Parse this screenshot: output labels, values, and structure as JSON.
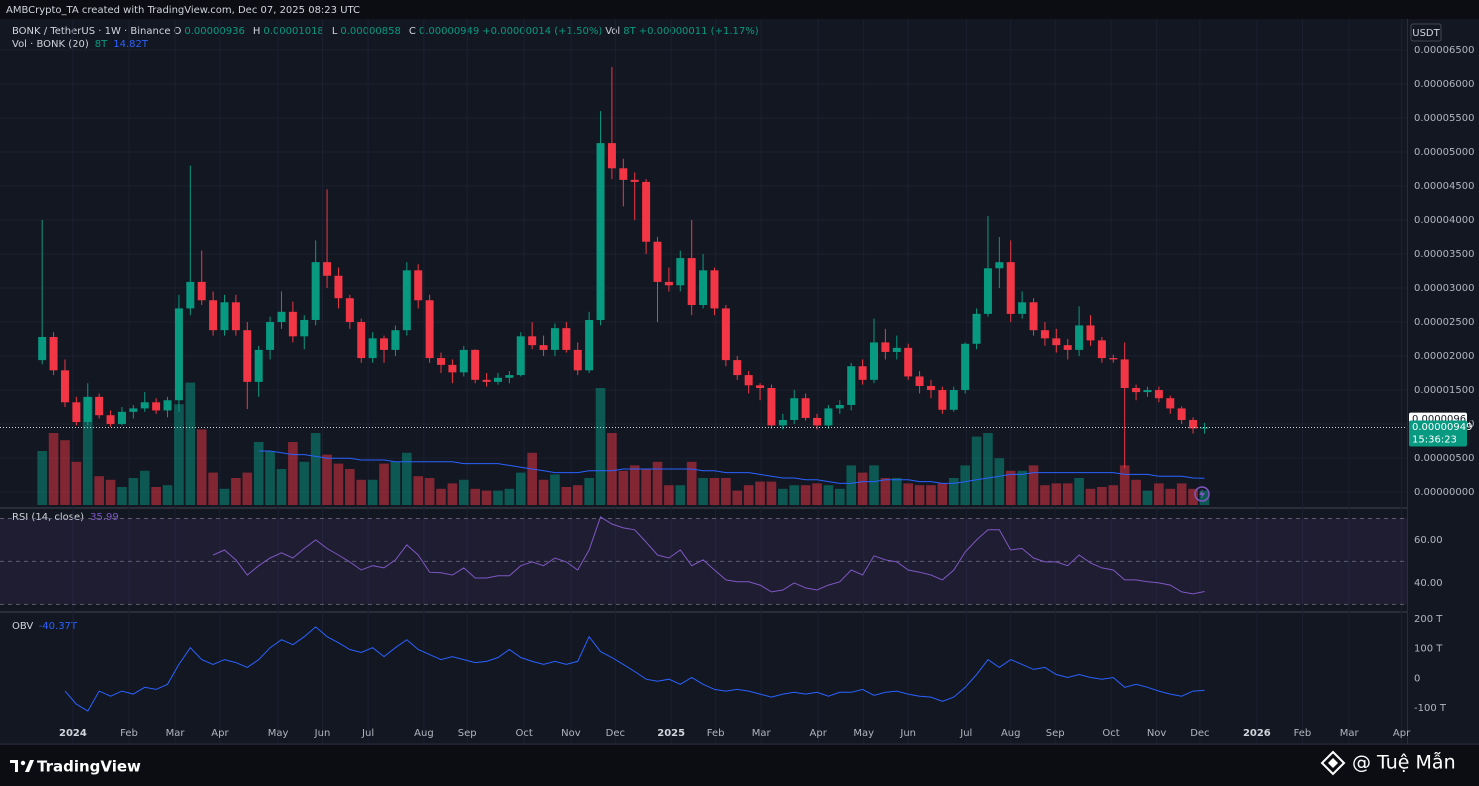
{
  "header": {
    "credit": "AMBCrypto_TA created with TradingView.com, Dec 07, 2025 08:23 UTC",
    "currency": "USDT",
    "legend": [
      {
        "text": "BONK / TetherUS · 1W · Binance",
        "color": "#d1d4dc"
      },
      {
        "text": "O",
        "color": "#d1d4dc"
      },
      {
        "text": "0.00000936",
        "color": "#089981"
      },
      {
        "text": "H",
        "color": "#d1d4dc"
      },
      {
        "text": "0.00001018",
        "color": "#089981"
      },
      {
        "text": "L",
        "color": "#d1d4dc"
      },
      {
        "text": "0.00000858",
        "color": "#089981"
      },
      {
        "text": "C",
        "color": "#d1d4dc"
      },
      {
        "text": "0.00000949",
        "color": "#089981"
      },
      {
        "text": "+0.00000014 (+1.50%)",
        "color": "#089981"
      },
      {
        "text": "Vol",
        "color": "#d1d4dc"
      },
      {
        "text": "8T",
        "color": "#089981"
      },
      {
        "text": "+0.00000011 (+1.17%)",
        "color": "#089981"
      }
    ]
  },
  "chart_data": [
    {
      "type": "candlestick",
      "up_color": "#089981",
      "down_color": "#f23645",
      "open": [
        1.94e-05,
        2.28e-05,
        1.79e-05,
        1.32e-05,
        1.03e-05,
        1.4e-05,
        1.13e-05,
        1e-05,
        1.18e-05,
        1.23e-05,
        1.32e-05,
        1.2e-05,
        1.35e-05,
        2.7e-05,
        3.09e-05,
        2.82e-05,
        2.38e-05,
        2.79e-05,
        2.38e-05,
        1.62e-05,
        2.09e-05,
        2.5e-05,
        2.65e-05,
        2.29e-05,
        2.53e-05,
        3.38e-05,
        3.18e-05,
        2.85e-05,
        2.5e-05,
        1.97e-05,
        2.26e-05,
        2.09e-05,
        2.38e-05,
        3.26e-05,
        2.82e-05,
        1.97e-05,
        1.87e-05,
        1.76e-05,
        2.09e-05,
        1.65e-05,
        1.62e-05,
        1.68e-05,
        1.72e-05,
        2.29e-05,
        2.16e-05,
        2.09e-05,
        2.41e-05,
        2.09e-05,
        1.79e-05,
        2.53e-05,
        5.13e-05,
        4.76e-05,
        4.59e-05,
        4.56e-05,
        3.68e-05,
        3.09e-05,
        3.04e-05,
        3.44e-05,
        2.75e-05,
        3.26e-05,
        2.7e-05,
        1.94e-05,
        1.72e-05,
        1.57e-05,
        1.53e-05,
        9.8e-06,
        1.06e-05,
        1.38e-05,
        1.09e-05,
        9.8e-06,
        1.23e-05,
        1.28e-05,
        1.85e-05,
        1.65e-05,
        2.2e-05,
        2.06e-05,
        2.12e-05,
        1.7e-05,
        1.56e-05,
        1.5e-05,
        1.21e-05,
        1.5e-05,
        2.18e-05,
        2.62e-05,
        3.29e-05,
        3.38e-05,
        2.62e-05,
        2.79e-05,
        2.38e-05,
        2.26e-05,
        2.16e-05,
        2.09e-05,
        2.45e-05,
        2.23e-05,
        1.97e-05,
        1.95e-05,
        1.53e-05,
        1.47e-05,
        1.5e-05,
        1.38e-05,
        1.23e-05,
        1.06e-05,
        9.36e-06
      ],
      "high": [
        4e-05,
        2.35e-05,
        1.95e-05,
        1.4e-05,
        1.6e-05,
        1.45e-05,
        1.2e-05,
        1.25e-05,
        1.28e-05,
        1.47e-05,
        1.38e-05,
        1.4e-05,
        2.9e-05,
        4.8e-05,
        3.55e-05,
        2.95e-05,
        2.9e-05,
        2.9e-05,
        2.5e-05,
        2.15e-05,
        2.58e-05,
        2.95e-05,
        2.8e-05,
        2.6e-05,
        3.7e-05,
        4.45e-05,
        3.3e-05,
        2.9e-05,
        2.55e-05,
        2.35e-05,
        2.3e-05,
        2.45e-05,
        3.38e-05,
        3.35e-05,
        2.9e-05,
        2.05e-05,
        1.95e-05,
        2.15e-05,
        2.1e-05,
        1.75e-05,
        1.75e-05,
        1.78e-05,
        2.35e-05,
        2.5e-05,
        2.3e-05,
        2.48e-05,
        2.5e-05,
        2.2e-05,
        2.65e-05,
        5.6e-05,
        6.25e-05,
        4.9e-05,
        4.7e-05,
        4.6e-05,
        3.75e-05,
        3.3e-05,
        3.55e-05,
        4e-05,
        3.5e-05,
        3.3e-05,
        2.75e-05,
        2e-05,
        1.78e-05,
        1.6e-05,
        1.58e-05,
        1.15e-05,
        1.5e-05,
        1.45e-05,
        1.15e-05,
        1.28e-05,
        1.35e-05,
        1.9e-05,
        1.95e-05,
        2.55e-05,
        2.4e-05,
        2.3e-05,
        2.18e-05,
        1.78e-05,
        1.65e-05,
        1.55e-05,
        1.55e-05,
        2.2e-05,
        2.7e-05,
        4.06e-05,
        3.75e-05,
        3.7e-05,
        2.95e-05,
        2.85e-05,
        2.5e-05,
        2.4e-05,
        2.25e-05,
        2.73e-05,
        2.6e-05,
        2.28e-05,
        2.02e-05,
        2.2e-05,
        1.58e-05,
        1.55e-05,
        1.55e-05,
        1.42e-05,
        1.26e-05,
        1.1e-05,
        1.018e-05
      ],
      "low": [
        1.88e-05,
        1.72e-05,
        1.25e-05,
        9.8e-06,
        9.8e-06,
        1.08e-05,
        9.6e-06,
        9.8e-06,
        1.08e-05,
        1.18e-05,
        1.15e-05,
        1.1e-05,
        1.18e-05,
        2.6e-05,
        2.75e-05,
        2.3e-05,
        2.3e-05,
        2.3e-05,
        1.22e-05,
        1.4e-05,
        1.95e-05,
        2.4e-05,
        2.2e-05,
        2.1e-05,
        2.45e-05,
        3e-05,
        2.7e-05,
        2.4e-05,
        1.9e-05,
        1.9e-05,
        1.9e-05,
        2e-05,
        2.3e-05,
        2.7e-05,
        1.9e-05,
        1.75e-05,
        1.6e-05,
        1.7e-05,
        1.6e-05,
        1.55e-05,
        1.58e-05,
        1.6e-05,
        1.7e-05,
        2.1e-05,
        2e-05,
        2e-05,
        2.05e-05,
        1.72e-05,
        1.75e-05,
        2.45e-05,
        4.6e-05,
        4.2e-05,
        4e-05,
        3.5e-05,
        2.5e-05,
        2.95e-05,
        2.95e-05,
        2.6e-05,
        2.7e-05,
        2.6e-05,
        1.85e-05,
        1.65e-05,
        1.45e-05,
        1.35e-05,
        9.3e-06,
        9.2e-06,
        1e-05,
        1.05e-05,
        9.2e-06,
        9.3e-06,
        1.15e-05,
        1.2e-05,
        1.58e-05,
        1.6e-05,
        1.95e-05,
        1.95e-05,
        1.65e-05,
        1.45e-05,
        1.38e-05,
        1.15e-05,
        1.18e-05,
        1.45e-05,
        2.1e-05,
        2.58e-05,
        3e-05,
        2.5e-05,
        2.55e-05,
        2.3e-05,
        2.15e-05,
        2.05e-05,
        1.95e-05,
        2e-05,
        2.15e-05,
        1.9e-05,
        1.9e-05,
        3.5e-06,
        1.35e-05,
        1.4e-05,
        1.32e-05,
        1.15e-05,
        1e-05,
        8.6e-06,
        8.58e-06
      ],
      "close": [
        2.28e-05,
        1.79e-05,
        1.32e-05,
        1.03e-05,
        1.4e-05,
        1.13e-05,
        1e-05,
        1.18e-05,
        1.23e-05,
        1.32e-05,
        1.2e-05,
        1.35e-05,
        2.7e-05,
        3.09e-05,
        2.82e-05,
        2.38e-05,
        2.79e-05,
        2.38e-05,
        1.62e-05,
        2.09e-05,
        2.5e-05,
        2.65e-05,
        2.29e-05,
        2.53e-05,
        3.38e-05,
        3.18e-05,
        2.85e-05,
        2.5e-05,
        1.97e-05,
        2.26e-05,
        2.09e-05,
        2.38e-05,
        3.26e-05,
        2.82e-05,
        1.97e-05,
        1.87e-05,
        1.76e-05,
        2.09e-05,
        1.65e-05,
        1.62e-05,
        1.68e-05,
        1.72e-05,
        2.29e-05,
        2.16e-05,
        2.09e-05,
        2.41e-05,
        2.09e-05,
        1.79e-05,
        2.53e-05,
        5.13e-05,
        4.76e-05,
        4.59e-05,
        4.56e-05,
        3.68e-05,
        3.09e-05,
        3.04e-05,
        3.44e-05,
        2.75e-05,
        3.26e-05,
        2.7e-05,
        1.94e-05,
        1.72e-05,
        1.57e-05,
        1.53e-05,
        9.8e-06,
        1.06e-05,
        1.38e-05,
        1.09e-05,
        9.8e-06,
        1.23e-05,
        1.28e-05,
        1.85e-05,
        1.65e-05,
        2.2e-05,
        2.06e-05,
        2.12e-05,
        1.7e-05,
        1.56e-05,
        1.5e-05,
        1.21e-05,
        1.5e-05,
        2.18e-05,
        2.62e-05,
        3.29e-05,
        3.38e-05,
        2.62e-05,
        2.79e-05,
        2.38e-05,
        2.26e-05,
        2.16e-05,
        2.09e-05,
        2.45e-05,
        2.23e-05,
        1.97e-05,
        1.95e-05,
        1.53e-05,
        1.47e-05,
        1.5e-05,
        1.38e-05,
        1.23e-05,
        1.06e-05,
        9.36e-06,
        9.49e-06
      ],
      "volume_title": "Vol · BONK (20)",
      "volume_labels": [
        "8T",
        "14.82T"
      ],
      "volume_ma_color": "#2962ff",
      "volume": [
        30,
        40,
        36,
        24,
        60,
        16,
        14,
        10,
        15,
        19,
        10,
        11,
        56,
        68,
        42,
        18,
        9,
        15,
        18,
        35,
        30,
        20,
        35,
        24,
        40,
        28,
        23,
        20,
        14,
        14,
        23,
        24,
        29,
        16,
        15,
        9,
        12,
        14,
        9,
        8,
        8,
        9,
        18,
        29,
        14,
        17,
        10,
        11,
        15,
        65,
        40,
        19,
        22,
        20,
        24,
        11,
        11,
        24,
        15,
        15,
        15,
        8,
        11,
        13,
        13,
        9,
        11,
        11,
        12,
        11,
        9,
        22,
        18,
        22,
        15,
        15,
        12,
        11,
        11,
        12,
        15,
        22,
        38,
        40,
        26,
        19,
        19,
        22,
        11,
        12,
        12,
        15,
        9,
        10,
        11,
        22,
        14,
        8,
        12,
        9,
        12,
        9,
        8
      ],
      "volume_ma": [
        null,
        null,
        null,
        null,
        null,
        null,
        null,
        null,
        null,
        null,
        null,
        null,
        null,
        null,
        null,
        null,
        null,
        null,
        null,
        30,
        30,
        29,
        28,
        28,
        27,
        26,
        26,
        26,
        25,
        25,
        25,
        24,
        24,
        24,
        24,
        24,
        24,
        23,
        23,
        23,
        23,
        22,
        21,
        20,
        19,
        18,
        18,
        18,
        19,
        19,
        19,
        20,
        20,
        20,
        20,
        20,
        20,
        20,
        19,
        19,
        18,
        18,
        18,
        17,
        16,
        15,
        15,
        14,
        14,
        13,
        12,
        12,
        13,
        13,
        14,
        14,
        14,
        13,
        13,
        12,
        12,
        13,
        14,
        15,
        16,
        17,
        17,
        18,
        18,
        18,
        18,
        18,
        18,
        18,
        18,
        17,
        17,
        17,
        16,
        16,
        16,
        15,
        14.82
      ],
      "ylim": [
        -1.9e-06,
        6.94e-05
      ],
      "yticks": [
        {
          "value": 0,
          "label": "0.00000000"
        },
        {
          "value": 5e-06,
          "label": "0.00000500"
        },
        {
          "value": 1e-05,
          "label": "0.00001000"
        },
        {
          "value": 1.5e-05,
          "label": "0.00001500"
        },
        {
          "value": 2e-05,
          "label": "0.00002000"
        },
        {
          "value": 2.5e-05,
          "label": "0.00002500"
        },
        {
          "value": 3e-05,
          "label": "0.00003000"
        },
        {
          "value": 3.5e-05,
          "label": "0.00003500"
        },
        {
          "value": 4e-05,
          "label": "0.00004000"
        },
        {
          "value": 4.5e-05,
          "label": "0.00004500"
        },
        {
          "value": 5e-05,
          "label": "0.00005000"
        },
        {
          "value": 5.5e-05,
          "label": "0.00005500"
        },
        {
          "value": 6e-05,
          "label": "0.00006000"
        },
        {
          "value": 6.5e-05,
          "label": "0.00006500"
        }
      ],
      "price_labels": [
        {
          "value": 9.63e-06,
          "label": "0.00000963"
        },
        {
          "value": 9.49e-06,
          "label": "0.00000949",
          "countdown": "15:36:23"
        }
      ],
      "xlim": [
        -3,
        119.6
      ],
      "xticks": [
        {
          "value": 2.7,
          "label": "2024"
        },
        {
          "value": 7.62,
          "label": "Feb"
        },
        {
          "value": 11.66,
          "label": "Mar"
        },
        {
          "value": 15.6,
          "label": "Apr"
        },
        {
          "value": 20.7,
          "label": "May"
        },
        {
          "value": 24.6,
          "label": "Jun"
        },
        {
          "value": 28.6,
          "label": "Jul"
        },
        {
          "value": 33.5,
          "label": "Aug"
        },
        {
          "value": 37.3,
          "label": "Sep"
        },
        {
          "value": 42.3,
          "label": "Oct"
        },
        {
          "value": 46.4,
          "label": "Nov"
        },
        {
          "value": 50.3,
          "label": "Dec"
        },
        {
          "value": 55.2,
          "label": "2025"
        },
        {
          "value": 59.1,
          "label": "Feb"
        },
        {
          "value": 63.1,
          "label": "Mar"
        },
        {
          "value": 68.1,
          "label": "Apr"
        },
        {
          "value": 72.1,
          "label": "May"
        },
        {
          "value": 76,
          "label": "Jun"
        },
        {
          "value": 81.1,
          "label": "Jul"
        },
        {
          "value": 85,
          "label": "Aug"
        },
        {
          "value": 88.9,
          "label": "Sep"
        },
        {
          "value": 93.8,
          "label": "Oct"
        },
        {
          "value": 97.8,
          "label": "Nov"
        },
        {
          "value": 101.6,
          "label": "Dec"
        },
        {
          "value": 106.6,
          "label": "2026"
        },
        {
          "value": 110.6,
          "label": "Feb"
        },
        {
          "value": 114.7,
          "label": "Mar"
        },
        {
          "value": 119.3,
          "label": "Apr"
        }
      ],
      "grid": true
    },
    {
      "type": "line",
      "legend_value": 35.99,
      "bands": [
        70,
        50,
        30
      ],
      "series": [
        {
          "name": "RSI (14, close)",
          "color": "#7e57c2",
          "values": [
            null,
            null,
            null,
            null,
            null,
            null,
            null,
            null,
            null,
            null,
            null,
            null,
            null,
            null,
            null,
            53,
            55.3,
            50.7,
            43.7,
            48,
            51.6,
            54,
            51.6,
            56,
            60,
            56,
            53,
            49.8,
            46,
            48,
            47,
            50.7,
            57.7,
            53,
            45,
            44.7,
            43.7,
            47,
            42.3,
            42.3,
            43.3,
            43.3,
            48,
            49.8,
            48,
            51.6,
            49.8,
            46,
            55.3,
            70.7,
            67.4,
            65.6,
            64.7,
            59,
            53,
            51.6,
            55.3,
            48,
            50.7,
            46,
            41.4,
            40.5,
            40.5,
            39,
            35.8,
            36.7,
            40,
            37.7,
            36.7,
            39,
            40.5,
            46,
            43.7,
            52.6,
            50.7,
            49.8,
            46,
            45,
            43.7,
            41.4,
            46,
            54.4,
            60,
            64.7,
            64.7,
            55.3,
            56,
            51.6,
            49.8,
            49.8,
            48,
            53,
            49.3,
            47,
            46,
            41.4,
            41.4,
            40.5,
            40,
            39,
            35.8,
            34.9,
            35.99
          ]
        }
      ],
      "ylim": [
        27.4,
        73
      ],
      "yticks": [
        {
          "value": 60,
          "label": "60.00"
        },
        {
          "value": 40,
          "label": "40.00"
        }
      ]
    },
    {
      "type": "line",
      "legend_value": "-40.37T",
      "series": [
        {
          "name": "OBV",
          "color": "#2962ff",
          "values": [
            null,
            null,
            -43,
            -87,
            -110,
            -43,
            -60,
            -43,
            -53,
            -30,
            -37,
            -20,
            47,
            103,
            63,
            47,
            63,
            53,
            37,
            63,
            103,
            130,
            113,
            140,
            173,
            140,
            120,
            97,
            87,
            103,
            73,
            103,
            130,
            97,
            80,
            63,
            73,
            63,
            53,
            57,
            70,
            97,
            70,
            57,
            47,
            57,
            47,
            57,
            140,
            90,
            70,
            47,
            23,
            -3,
            -10,
            -3,
            -20,
            3,
            -20,
            -37,
            -43,
            -37,
            -43,
            -53,
            -63,
            -53,
            -47,
            -53,
            -47,
            -60,
            -47,
            -47,
            -37,
            -57,
            -47,
            -43,
            -53,
            -60,
            -63,
            -77,
            -63,
            -30,
            13,
            63,
            37,
            63,
            47,
            30,
            37,
            13,
            3,
            13,
            3,
            -3,
            3,
            -30,
            -20,
            -30,
            -43,
            -53,
            -60,
            -43,
            -40.37
          ]
        }
      ],
      "ylim": [
        -140,
        213
      ],
      "yticks": [
        {
          "value": 200,
          "label": "200 T"
        },
        {
          "value": 100,
          "label": "100 T"
        },
        0,
        {
          "value": -100,
          "label": "-100 T"
        }
      ]
    }
  ],
  "footer": {
    "brand": "TradingView",
    "watermark": "@ Tuệ Mẫn"
  }
}
